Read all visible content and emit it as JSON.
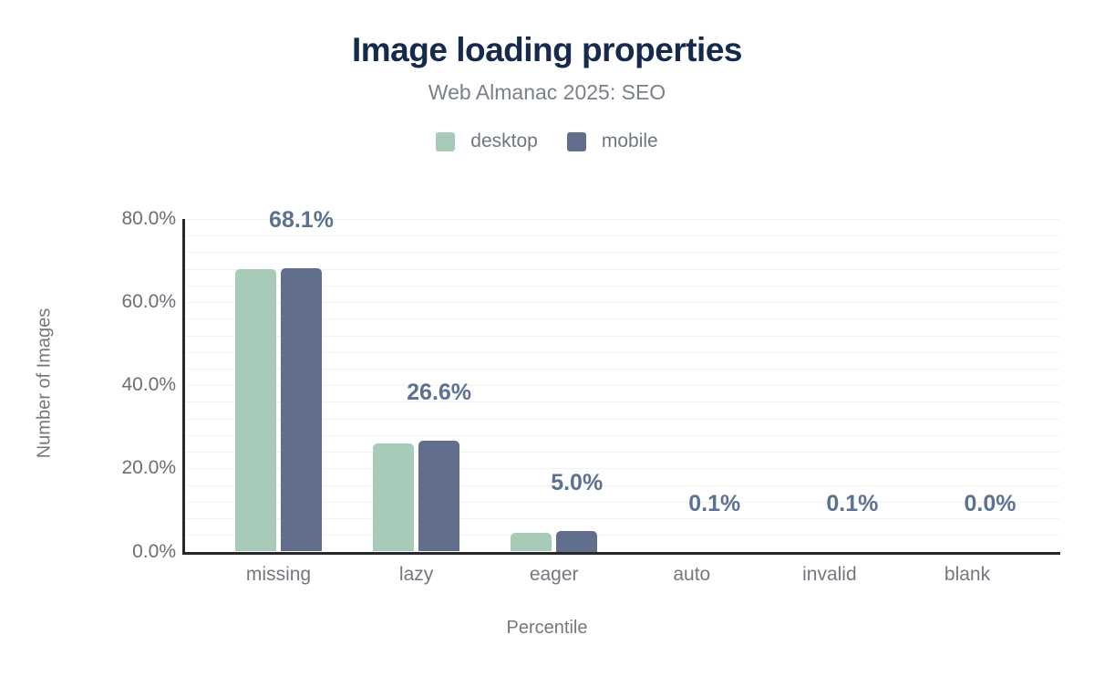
{
  "header": {
    "title": "Image loading properties",
    "subtitle": "Web Almanac 2025: SEO"
  },
  "legend": [
    {
      "label": "desktop",
      "color": "#a8cab8"
    },
    {
      "label": "mobile",
      "color": "#616f8c"
    }
  ],
  "y_axis": {
    "title": "Number of Images",
    "tick_labels": [
      "0.0%",
      "20.0%",
      "40.0%",
      "60.0%",
      "80.0%"
    ]
  },
  "x_axis": {
    "title": "Percentile",
    "tick_labels": [
      "missing",
      "lazy",
      "eager",
      "auto",
      "invalid",
      "blank"
    ]
  },
  "colors": {
    "desktop": "#a8cab8",
    "mobile": "#616f8c",
    "title_text": "#152a4c",
    "subtitle_text": "#7b8189",
    "data_label_text": "#5c7292",
    "axis_text": "#74787e",
    "axis_line": "#26282a",
    "gridline": "#f2f2f2"
  },
  "chart_data": {
    "type": "bar",
    "title": "Image loading properties",
    "subtitle": "Web Almanac 2025: SEO",
    "categories": [
      "missing",
      "lazy",
      "eager",
      "auto",
      "invalid",
      "blank"
    ],
    "series": [
      {
        "name": "desktop",
        "values": [
          67.9,
          26.1,
          4.5,
          0.1,
          0.1,
          0.0
        ]
      },
      {
        "name": "mobile",
        "values": [
          68.1,
          26.6,
          5.0,
          0.1,
          0.1,
          0.0
        ]
      }
    ],
    "data_labels": [
      "68.1%",
      "26.6%",
      "5.0%",
      "0.1%",
      "0.1%",
      "0.0%"
    ],
    "xlabel": "Percentile",
    "ylabel": "Number of Images",
    "ylim": [
      0,
      80
    ],
    "yticks_percent": [
      0,
      20,
      40,
      60,
      80
    ],
    "minor_grid_step_percent": 4,
    "grid": true,
    "legend_position": "top",
    "bar_value_label_series": "mobile"
  }
}
